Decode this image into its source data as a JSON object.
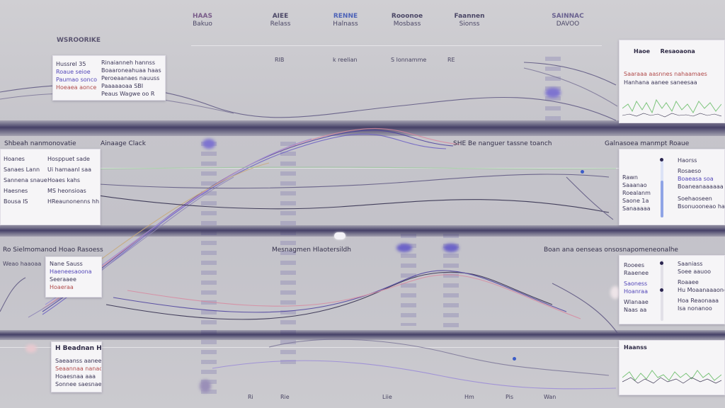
{
  "header": {
    "columns": [
      {
        "title": "HAAS",
        "subtitle": "Bakuo"
      },
      {
        "title": "AIEE",
        "subtitle": "Relass"
      },
      {
        "title": "RENNE",
        "subtitle": "Halnass"
      },
      {
        "title": "Rooonoe",
        "subtitle": "Mosbass"
      },
      {
        "title": "Faannen",
        "subtitle": "Sionss"
      },
      {
        "title": "SAINNAC",
        "subtitle": "DAVOO"
      }
    ],
    "rule_labels": [
      "RIB",
      "k reelian",
      "S lonnamme",
      "RE"
    ],
    "brand": "WSROORIKE"
  },
  "top_left_card": {
    "left_lines": [
      "Hussrel 35",
      "Roaue seioe",
      "Paumao sonco",
      "Hoeaea aonce"
    ],
    "right_lines": [
      "Rinaianneh hannss",
      "Boaaroneahuaa haas",
      "Peroeaanaes nauuss",
      "Paaaaaoaa SBI",
      "Peaus Wagwe oo R"
    ]
  },
  "top_right_card": {
    "title_a": "Haoe",
    "title_b": "Resaoaona",
    "lines": [
      "Saaraaa aasnnes nahaamaes",
      "Hanhana aanee saneesaa"
    ]
  },
  "row2": {
    "left_label": "Shbeah nanmonovatie",
    "mid_label": "Ainaage Clack",
    "center_label": "SHE Be nanguer tassne toanch",
    "right_label": "Galnasoea manmpt Roaue",
    "left_card": {
      "left_lines": [
        "Hoanes",
        "Sanaes Lann",
        "Sannena snaue",
        "Haesnes",
        "Bousa  IS"
      ],
      "right_lines": [
        "Hosppuet sade",
        "Ui hamaanl saa",
        "Hoaes kahs",
        "MS heonsioas",
        "HReaunonenns hh"
      ]
    },
    "right_card": {
      "left_lines": [
        "Rawn",
        "Saaanao",
        "Roealanm",
        "Saone 1a",
        "Sanaaaaa"
      ],
      "right_lines": [
        "Haorss",
        "Rosaeso",
        "Boaeasa soa",
        "Boaneanaaaaaa",
        "Soehaoseen",
        "Bsonuooneao haao"
      ]
    }
  },
  "row3": {
    "left_label": "Ro Sielmomanod Hoao Rasoess",
    "center_label": "Mesnagmen Hlaotersildh",
    "right_label": "Boan ana oenseas onsosnapomeneonalhe",
    "left_sub": "Weao haaoaa",
    "left_card": {
      "lines": [
        "Nane Sauss",
        "Haeneesaoona",
        "Seeraaee",
        "Hoaeraa"
      ]
    },
    "right_card": {
      "left_lines": [
        "Rooees",
        "Raaenee",
        "Saoness",
        "Hoanraa",
        "Wlanaae",
        "Naas aa"
      ],
      "right_lines": [
        "Saaniass",
        "Soee aauoo",
        "Roaaee",
        "Hu Moaanaaaoneaa",
        "Hoa Reaonaaa",
        "Isa nonanoo"
      ]
    }
  },
  "row4": {
    "left_card": {
      "title": "H Beadnan Hlae",
      "lines": [
        "Saeaanss aanee",
        "Seaannaa nanaoa",
        "Hoaesnaa aaa",
        "Sonnee saesnaes"
      ]
    },
    "right_card": {
      "title": "Haanss"
    },
    "axis_ticks": [
      "Ri",
      "Rie",
      "Liie",
      "Hm",
      "Pis",
      "Wan"
    ]
  },
  "colors": {
    "band": "#37325c",
    "accent": "#5246b8",
    "line_purple": "#4a3f9e",
    "line_pink": "#d88aa0",
    "line_green": "#7bc47a",
    "line_dark": "#2c2748"
  }
}
